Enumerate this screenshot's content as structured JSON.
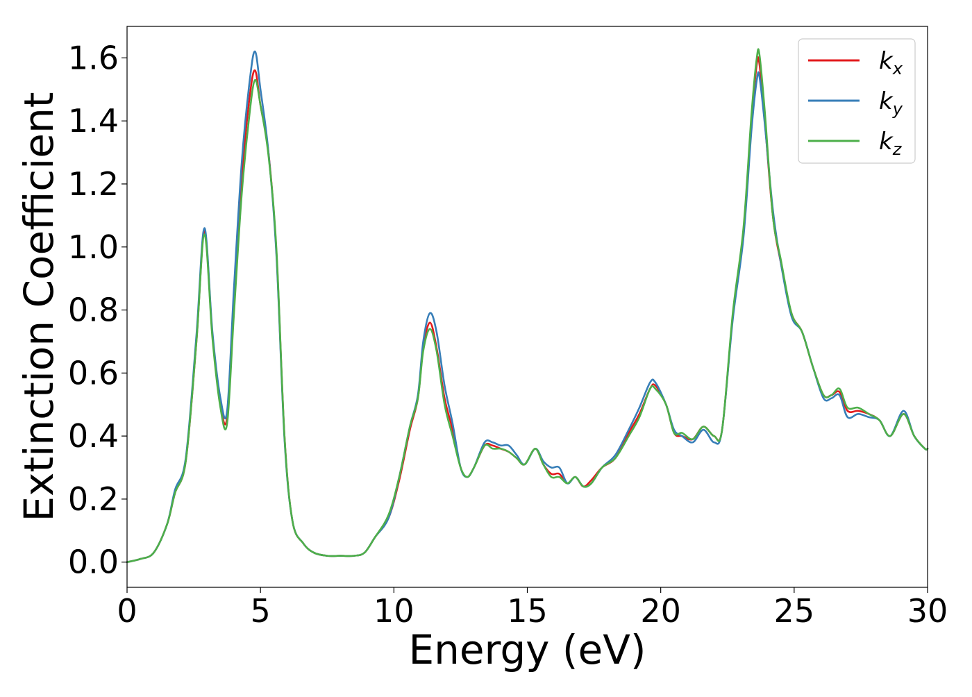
{
  "chart_data": {
    "type": "line",
    "title": "",
    "xlabel": "Energy (eV)",
    "ylabel": "Extinction Coefficient",
    "xlim": [
      0,
      30
    ],
    "ylim": [
      -0.08,
      1.7
    ],
    "xticks": [
      0,
      5,
      10,
      15,
      20,
      25,
      30
    ],
    "xtick_labels": [
      "0",
      "5",
      "10",
      "15",
      "20",
      "25",
      "30"
    ],
    "yticks": [
      0.0,
      0.2,
      0.4,
      0.6,
      0.8,
      1.0,
      1.2,
      1.4,
      1.6
    ],
    "ytick_labels": [
      "0.0",
      "0.2",
      "0.4",
      "0.6",
      "0.8",
      "1.0",
      "1.2",
      "1.4",
      "1.6"
    ],
    "grid": false,
    "legend_position": "top-right",
    "x": [
      0,
      0.5,
      1.0,
      1.5,
      1.8,
      2.2,
      2.6,
      2.9,
      3.2,
      3.5,
      3.75,
      4.0,
      4.3,
      4.6,
      4.8,
      5.0,
      5.3,
      5.6,
      5.9,
      6.2,
      6.6,
      7.0,
      7.5,
      8.0,
      8.5,
      8.9,
      9.3,
      9.8,
      10.2,
      10.6,
      10.9,
      11.1,
      11.35,
      11.6,
      11.9,
      12.2,
      12.5,
      12.75,
      13.0,
      13.4,
      13.7,
      14.0,
      14.3,
      14.6,
      14.9,
      15.3,
      15.6,
      15.9,
      16.2,
      16.5,
      16.8,
      17.1,
      17.4,
      17.8,
      18.3,
      18.8,
      19.2,
      19.6,
      19.8,
      20.2,
      20.5,
      20.8,
      21.2,
      21.6,
      22.0,
      22.3,
      22.7,
      23.1,
      23.4,
      23.6,
      23.7,
      23.9,
      24.2,
      24.5,
      24.9,
      25.3,
      25.7,
      26.1,
      26.4,
      26.7,
      27.0,
      27.4,
      27.8,
      28.2,
      28.6,
      29.1,
      29.5,
      29.9,
      30.0
    ],
    "series": [
      {
        "name": "kx",
        "color": "#e31a1c",
        "values": [
          0.0,
          0.01,
          0.03,
          0.12,
          0.22,
          0.32,
          0.7,
          1.05,
          0.72,
          0.5,
          0.46,
          0.82,
          1.22,
          1.48,
          1.56,
          1.45,
          1.3,
          0.98,
          0.4,
          0.13,
          0.06,
          0.03,
          0.02,
          0.02,
          0.02,
          0.03,
          0.08,
          0.14,
          0.26,
          0.42,
          0.52,
          0.68,
          0.76,
          0.68,
          0.52,
          0.42,
          0.3,
          0.27,
          0.3,
          0.37,
          0.37,
          0.36,
          0.35,
          0.33,
          0.31,
          0.36,
          0.31,
          0.28,
          0.28,
          0.25,
          0.27,
          0.24,
          0.26,
          0.3,
          0.33,
          0.41,
          0.47,
          0.55,
          0.56,
          0.5,
          0.41,
          0.4,
          0.39,
          0.43,
          0.4,
          0.42,
          0.78,
          1.05,
          1.4,
          1.58,
          1.58,
          1.4,
          1.1,
          0.95,
          0.79,
          0.73,
          0.62,
          0.53,
          0.53,
          0.54,
          0.48,
          0.48,
          0.47,
          0.45,
          0.4,
          0.47,
          0.4,
          0.36,
          0.36
        ]
      },
      {
        "name": "ky",
        "color": "#377eb8",
        "values": [
          0.0,
          0.01,
          0.03,
          0.12,
          0.23,
          0.33,
          0.72,
          1.06,
          0.73,
          0.52,
          0.48,
          0.86,
          1.27,
          1.53,
          1.62,
          1.5,
          1.3,
          0.97,
          0.39,
          0.13,
          0.06,
          0.03,
          0.02,
          0.02,
          0.02,
          0.03,
          0.08,
          0.14,
          0.27,
          0.43,
          0.53,
          0.7,
          0.79,
          0.73,
          0.56,
          0.44,
          0.3,
          0.27,
          0.3,
          0.38,
          0.38,
          0.37,
          0.37,
          0.34,
          0.31,
          0.36,
          0.32,
          0.3,
          0.3,
          0.25,
          0.27,
          0.24,
          0.25,
          0.3,
          0.34,
          0.42,
          0.49,
          0.57,
          0.57,
          0.5,
          0.42,
          0.4,
          0.38,
          0.42,
          0.38,
          0.42,
          0.77,
          1.03,
          1.37,
          1.53,
          1.54,
          1.39,
          1.12,
          0.95,
          0.78,
          0.73,
          0.62,
          0.52,
          0.52,
          0.53,
          0.46,
          0.47,
          0.46,
          0.45,
          0.4,
          0.48,
          0.4,
          0.36,
          0.36
        ]
      },
      {
        "name": "kz",
        "color": "#4daf4a",
        "values": [
          0.0,
          0.01,
          0.03,
          0.12,
          0.22,
          0.32,
          0.7,
          1.04,
          0.71,
          0.49,
          0.44,
          0.78,
          1.17,
          1.43,
          1.53,
          1.45,
          1.29,
          0.99,
          0.4,
          0.13,
          0.06,
          0.03,
          0.02,
          0.02,
          0.02,
          0.03,
          0.08,
          0.15,
          0.27,
          0.43,
          0.52,
          0.67,
          0.74,
          0.67,
          0.5,
          0.4,
          0.3,
          0.27,
          0.3,
          0.37,
          0.36,
          0.36,
          0.35,
          0.33,
          0.31,
          0.36,
          0.31,
          0.27,
          0.27,
          0.25,
          0.27,
          0.24,
          0.25,
          0.3,
          0.33,
          0.4,
          0.46,
          0.55,
          0.55,
          0.5,
          0.41,
          0.41,
          0.39,
          0.43,
          0.4,
          0.42,
          0.79,
          1.06,
          1.42,
          1.6,
          1.61,
          1.43,
          1.1,
          0.96,
          0.79,
          0.73,
          0.62,
          0.53,
          0.53,
          0.55,
          0.49,
          0.49,
          0.47,
          0.45,
          0.4,
          0.47,
          0.4,
          0.36,
          0.36
        ]
      }
    ],
    "legend": [
      {
        "base": "k",
        "sub": "x",
        "color": "#e31a1c"
      },
      {
        "base": "k",
        "sub": "y",
        "color": "#377eb8"
      },
      {
        "base": "k",
        "sub": "z",
        "color": "#4daf4a"
      }
    ]
  }
}
